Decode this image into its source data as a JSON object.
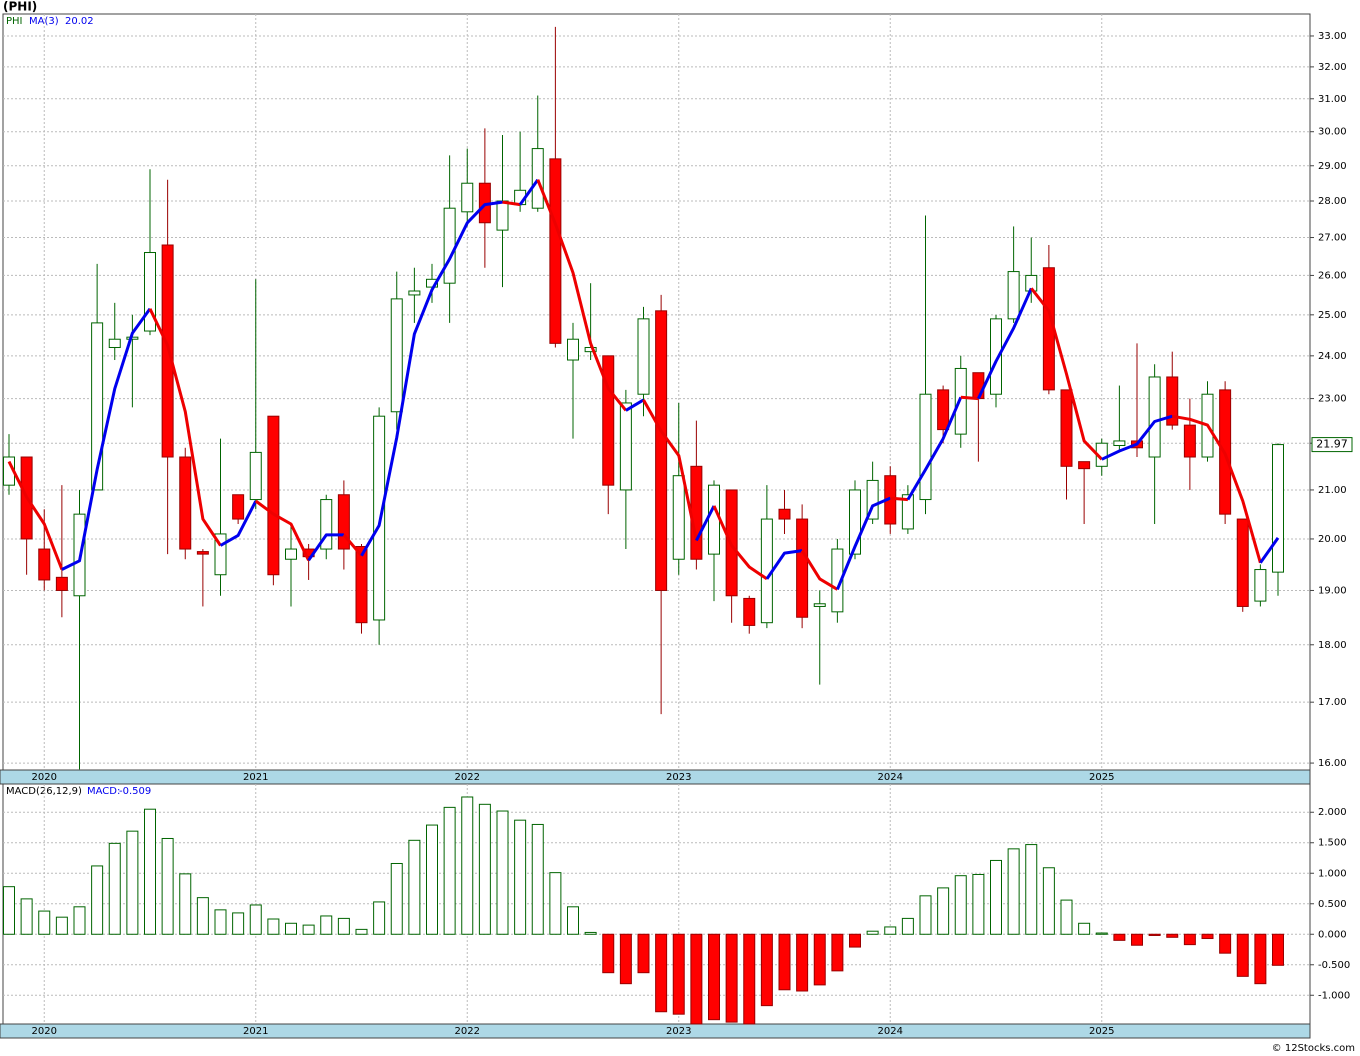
{
  "chart_data": [
    {
      "type": "candlestick",
      "title": "(PHI)",
      "name": "PHI",
      "categories": [
        null,
        null,
        "2020",
        null,
        null,
        null,
        null,
        null,
        null,
        null,
        null,
        null,
        null,
        null,
        "2021",
        null,
        null,
        null,
        null,
        null,
        null,
        null,
        null,
        null,
        null,
        null,
        "2022",
        null,
        null,
        null,
        null,
        null,
        null,
        null,
        null,
        null,
        null,
        null,
        "2023",
        null,
        null,
        null,
        null,
        null,
        null,
        null,
        null,
        null,
        null,
        null,
        "2024",
        null,
        null,
        null,
        null,
        null,
        null,
        null,
        null,
        null,
        null,
        null,
        "2025",
        null,
        null,
        null,
        null,
        null,
        null,
        null,
        null,
        null,
        null
      ],
      "open": [
        21.1,
        21.7,
        19.8,
        19.25,
        18.9,
        21.0,
        24.2,
        24.4,
        24.6,
        26.8,
        21.7,
        19.75,
        19.3,
        20.9,
        20.8,
        22.6,
        19.6,
        19.8,
        19.8,
        20.9,
        19.85,
        18.45,
        22.7,
        25.5,
        25.7,
        25.8,
        27.7,
        28.5,
        27.2,
        27.9,
        27.8,
        29.2,
        23.9,
        24.1,
        24.0,
        21.0,
        23.1,
        25.1,
        19.6,
        21.5,
        19.7,
        21.0,
        18.85,
        18.4,
        20.6,
        20.4,
        18.7,
        18.6,
        19.7,
        20.4,
        21.3,
        20.2,
        20.8,
        23.2,
        22.2,
        23.6,
        23.1,
        24.9,
        25.6,
        26.2,
        23.2,
        21.6,
        21.5,
        21.95,
        22.05,
        21.7,
        23.5,
        22.4,
        21.7,
        23.2,
        20.4,
        18.8,
        19.35
      ],
      "high": [
        22.2,
        21.7,
        20.6,
        21.1,
        21.0,
        26.3,
        25.3,
        25.0,
        28.9,
        28.6,
        21.9,
        19.8,
        22.1,
        20.9,
        25.9,
        22.6,
        20.3,
        19.9,
        20.9,
        21.2,
        19.9,
        22.8,
        26.1,
        26.2,
        26.3,
        29.3,
        29.5,
        30.1,
        29.9,
        30.0,
        31.1,
        33.3,
        24.8,
        25.8,
        24.0,
        23.2,
        25.2,
        25.5,
        22.9,
        22.5,
        21.2,
        21.0,
        18.9,
        21.1,
        21.0,
        20.7,
        19.0,
        20.0,
        21.2,
        21.6,
        21.5,
        21.1,
        27.6,
        23.3,
        24.0,
        23.6,
        25.0,
        27.3,
        27.0,
        26.8,
        23.2,
        21.6,
        22.1,
        23.3,
        24.3,
        23.8,
        24.1,
        23.0,
        23.4,
        23.4,
        20.4,
        19.5,
        22.0
      ],
      "low": [
        20.9,
        19.3,
        19.0,
        18.5,
        15.9,
        21.0,
        23.9,
        22.8,
        24.5,
        19.7,
        19.6,
        18.7,
        18.9,
        20.3,
        20.6,
        19.1,
        18.7,
        19.2,
        19.6,
        19.4,
        18.2,
        18.0,
        22.3,
        24.8,
        25.3,
        24.8,
        27.3,
        26.2,
        25.7,
        27.7,
        27.7,
        24.2,
        22.1,
        23.9,
        20.5,
        19.8,
        22.6,
        16.8,
        19.3,
        19.4,
        18.8,
        18.4,
        18.2,
        18.3,
        20.1,
        18.3,
        17.3,
        18.4,
        19.6,
        20.3,
        20.1,
        20.1,
        20.5,
        22.0,
        21.9,
        21.6,
        22.8,
        24.8,
        25.3,
        23.1,
        20.8,
        20.3,
        21.3,
        21.8,
        21.7,
        20.3,
        22.3,
        21.0,
        21.6,
        20.3,
        18.6,
        18.7,
        18.9
      ],
      "close": [
        21.7,
        20.0,
        19.2,
        19.0,
        20.5,
        24.8,
        24.4,
        24.45,
        26.6,
        21.7,
        19.8,
        19.7,
        20.1,
        20.4,
        21.8,
        19.3,
        19.8,
        19.65,
        20.8,
        19.8,
        18.4,
        22.6,
        25.4,
        25.6,
        25.9,
        27.8,
        28.5,
        27.4,
        28.0,
        28.3,
        29.5,
        24.3,
        24.4,
        24.2,
        21.1,
        22.9,
        24.9,
        19.0,
        21.3,
        19.6,
        21.1,
        18.9,
        18.35,
        20.4,
        20.4,
        18.5,
        18.75,
        19.8,
        21.0,
        21.2,
        20.3,
        20.9,
        23.1,
        22.3,
        23.7,
        23.0,
        24.9,
        26.1,
        26.0,
        23.2,
        21.5,
        21.45,
        22.0,
        22.05,
        21.9,
        23.5,
        22.4,
        21.7,
        23.1,
        20.5,
        18.7,
        19.4,
        21.97
      ],
      "ma": {
        "name": "MA(3)",
        "up_color": "#0000ee",
        "down_color": "#ee0000",
        "values": [
          21.6,
          20.85,
          20.3,
          19.4,
          19.57,
          21.43,
          23.23,
          24.55,
          25.15,
          24.25,
          22.7,
          20.4,
          19.87,
          20.07,
          20.77,
          20.5,
          20.3,
          19.58,
          20.08,
          20.08,
          19.67,
          20.27,
          22.13,
          24.53,
          25.63,
          26.43,
          27.4,
          27.9,
          27.97,
          27.9,
          28.6,
          27.37,
          26.07,
          24.3,
          23.23,
          22.73,
          22.97,
          22.27,
          21.73,
          19.97,
          20.67,
          19.87,
          19.45,
          19.22,
          19.72,
          19.77,
          19.22,
          19.02,
          19.85,
          20.67,
          20.83,
          20.8,
          21.43,
          22.1,
          23.03,
          23.0,
          23.87,
          24.67,
          25.67,
          25.1,
          23.57,
          22.05,
          21.65,
          21.83,
          21.98,
          22.48,
          22.6,
          22.53,
          22.4,
          21.77,
          20.77,
          19.53,
          20.02
        ]
      },
      "up_color": "#006400",
      "down_color": "#ff0000",
      "log_scale": true,
      "grid": true,
      "ylim": [
        15.89,
        33.73
      ],
      "yticks": [
        {
          "value": 16,
          "label": "16.00"
        },
        {
          "value": 17,
          "label": "17.00"
        },
        {
          "value": 18,
          "label": "18.00"
        },
        {
          "value": 19,
          "label": "19.00"
        },
        {
          "value": 20,
          "label": "20.00"
        },
        {
          "value": 21,
          "label": "21.00"
        },
        {
          "value": 22,
          "label": "22.00"
        },
        {
          "value": 23,
          "label": "23.00"
        },
        {
          "value": 24,
          "label": "24.00"
        },
        {
          "value": 25,
          "label": "25.00"
        },
        {
          "value": 26,
          "label": "26.00"
        },
        {
          "value": 27,
          "label": "27.00"
        },
        {
          "value": 28,
          "label": "28.00"
        },
        {
          "value": 29,
          "label": "29.00"
        },
        {
          "value": 30,
          "label": "30.00"
        },
        {
          "value": 31,
          "label": "31.00"
        },
        {
          "value": 32,
          "label": "32.00"
        },
        {
          "value": 33,
          "label": "33.00"
        }
      ]
    },
    {
      "type": "bar",
      "title": "MACD(26,12,9)",
      "name": "MACD:",
      "values": [
        0.78,
        0.58,
        0.38,
        0.28,
        0.45,
        1.12,
        1.49,
        1.69,
        2.05,
        1.57,
        0.99,
        0.6,
        0.4,
        0.35,
        0.48,
        0.25,
        0.18,
        0.15,
        0.3,
        0.26,
        0.08,
        0.53,
        1.16,
        1.54,
        1.79,
        2.08,
        2.25,
        2.13,
        2.02,
        1.87,
        1.8,
        1.01,
        0.45,
        0.03,
        -0.63,
        -0.81,
        -0.63,
        -1.27,
        -1.31,
        -1.47,
        -1.4,
        -1.44,
        -1.47,
        -1.17,
        -0.91,
        -0.93,
        -0.83,
        -0.6,
        -0.21,
        0.05,
        0.12,
        0.26,
        0.63,
        0.76,
        0.96,
        0.98,
        1.21,
        1.4,
        1.47,
        1.09,
        0.56,
        0.18,
        0.02,
        -0.1,
        -0.18,
        -0.02,
        -0.05,
        -0.17,
        -0.07,
        -0.31,
        -0.69,
        -0.81,
        -0.509
      ],
      "pos_color": "#006400",
      "neg_color": "#ff0000",
      "grid": true,
      "ylim": [
        -1.471,
        2.463
      ],
      "yticks": [
        {
          "value": -1,
          "label": "-1.000"
        },
        {
          "value": -0.5,
          "label": "-0.500"
        },
        {
          "value": 0,
          "label": "0.000"
        },
        {
          "value": 0.5,
          "label": "0.500"
        },
        {
          "value": 1,
          "label": "1.000"
        },
        {
          "value": 1.5,
          "label": "1.500"
        },
        {
          "value": 2,
          "label": "2.000"
        }
      ]
    }
  ],
  "credit": "© 12Stocks.com"
}
